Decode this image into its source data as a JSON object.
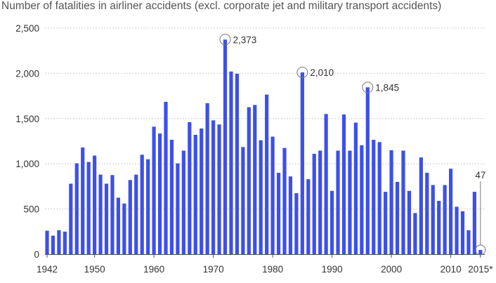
{
  "chart_data": {
    "type": "bar",
    "title": "Number of fatalities in airliner accidents (excl. corporate jet and military transport accidents)",
    "xlabel": "",
    "ylabel": "",
    "ylim": [
      0,
      2500
    ],
    "yticks": [
      0,
      500,
      1000,
      1500,
      2000,
      2500
    ],
    "ytick_labels": [
      "0",
      "500",
      "1,000",
      "1,500",
      "2,000",
      "2,500"
    ],
    "xtick_labels": [
      {
        "year": 1942,
        "label": "1942"
      },
      {
        "year": 1950,
        "label": "1950"
      },
      {
        "year": 1960,
        "label": "1960"
      },
      {
        "year": 1970,
        "label": "1970"
      },
      {
        "year": 1980,
        "label": "1980"
      },
      {
        "year": 1990,
        "label": "1990"
      },
      {
        "year": 2000,
        "label": "2000"
      },
      {
        "year": 2010,
        "label": "2010"
      },
      {
        "year": 2015,
        "label": "2015*"
      }
    ],
    "grid": true,
    "bar_color": "#3d50e8",
    "categories": [
      1942,
      1943,
      1944,
      1945,
      1946,
      1947,
      1948,
      1949,
      1950,
      1951,
      1952,
      1953,
      1954,
      1955,
      1956,
      1957,
      1958,
      1959,
      1960,
      1961,
      1962,
      1963,
      1964,
      1965,
      1966,
      1967,
      1968,
      1969,
      1970,
      1971,
      1972,
      1973,
      1974,
      1975,
      1976,
      1977,
      1978,
      1979,
      1980,
      1981,
      1982,
      1983,
      1984,
      1985,
      1986,
      1987,
      1988,
      1989,
      1990,
      1991,
      1992,
      1993,
      1994,
      1995,
      1996,
      1997,
      1998,
      1999,
      2000,
      2001,
      2002,
      2003,
      2004,
      2005,
      2006,
      2007,
      2008,
      2009,
      2010,
      2011,
      2012,
      2013,
      2014,
      2015
    ],
    "values": [
      260,
      205,
      265,
      250,
      780,
      1005,
      1180,
      1020,
      1090,
      880,
      780,
      875,
      625,
      560,
      820,
      880,
      1100,
      1050,
      1410,
      1335,
      1685,
      1265,
      1005,
      1145,
      1460,
      1320,
      1390,
      1670,
      1480,
      1435,
      2373,
      2020,
      1995,
      1185,
      1625,
      1650,
      1260,
      1765,
      1300,
      900,
      1175,
      860,
      675,
      2010,
      830,
      1110,
      1145,
      1550,
      700,
      1145,
      1545,
      1145,
      1455,
      1205,
      1845,
      1265,
      1240,
      690,
      1150,
      800,
      1145,
      700,
      455,
      1070,
      900,
      765,
      590,
      765,
      945,
      525,
      475,
      265,
      690,
      47
    ],
    "annotations": [
      {
        "year": 1972,
        "label": "2,373"
      },
      {
        "year": 1985,
        "label": "2,010"
      },
      {
        "year": 1996,
        "label": "1,845"
      },
      {
        "year": 2015,
        "label": "47"
      }
    ]
  }
}
